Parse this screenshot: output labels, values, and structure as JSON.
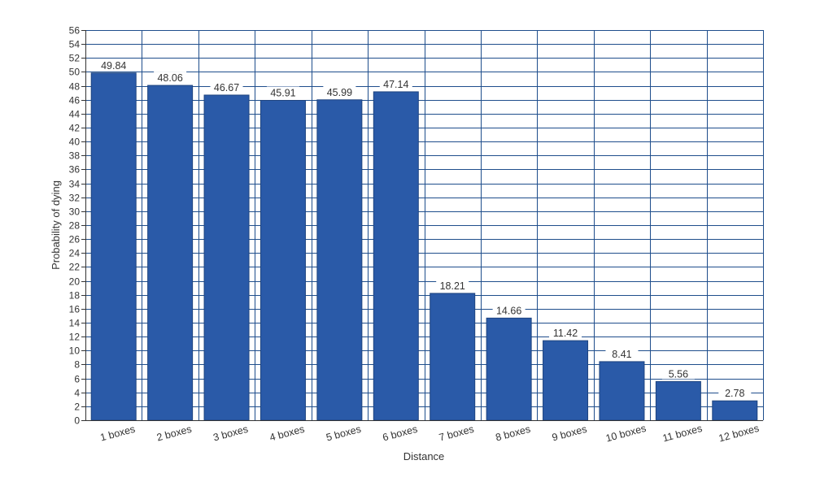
{
  "chart_data": {
    "type": "bar",
    "categories": [
      "1 boxes",
      "2 boxes",
      "3 boxes",
      "4 boxes",
      "5 boxes",
      "6 boxes",
      "7 boxes",
      "8 boxes",
      "9 boxes",
      "10 boxes",
      "11 boxes",
      "12 boxes"
    ],
    "values": [
      49.84,
      48.06,
      46.67,
      45.91,
      45.99,
      47.14,
      18.21,
      14.66,
      11.42,
      8.41,
      5.56,
      2.78
    ],
    "data_labels": [
      "49.84",
      "48.06",
      "46.67",
      "45.91",
      "45.99",
      "47.14",
      "18.21",
      "14.66",
      "11.42",
      "8.41",
      "5.56",
      "2.78"
    ],
    "xlabel": "Distance",
    "ylabel": "Probability of dying",
    "ylim": [
      0,
      56
    ],
    "ytick_step": 2,
    "grid": true,
    "legend": "none",
    "colors": {
      "bar": "#2a5aa8",
      "bar_edge": "#1e447f",
      "grid": "#1f4e8c",
      "axis": "#333333"
    }
  }
}
